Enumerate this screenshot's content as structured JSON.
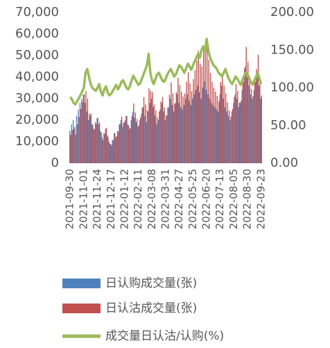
{
  "chart_data": {
    "type": "bar_line",
    "categories": [
      "2021-09-30",
      null,
      null,
      null,
      null,
      null,
      null,
      null,
      "2021-11-01",
      null,
      null,
      null,
      null,
      null,
      null,
      null,
      "2021-11-24",
      null,
      null,
      null,
      null,
      null,
      null,
      null,
      "2021-12-17",
      null,
      null,
      null,
      null,
      null,
      null,
      null,
      "2022-01-12",
      null,
      null,
      null,
      null,
      null,
      null,
      null,
      "2022-02-11",
      null,
      null,
      null,
      null,
      null,
      null,
      null,
      "2022-03-08",
      null,
      null,
      null,
      null,
      null,
      null,
      null,
      "2022-03-31",
      null,
      null,
      null,
      null,
      null,
      null,
      null,
      "2022-04-27",
      null,
      null,
      null,
      null,
      null,
      null,
      null,
      "2022-05-25",
      null,
      null,
      null,
      null,
      null,
      null,
      null,
      "2022-06-20",
      null,
      null,
      null,
      null,
      null,
      null,
      null,
      "2022-07-13",
      null,
      null,
      null,
      null,
      null,
      null,
      null,
      "2022-08-05",
      null,
      null,
      null,
      null,
      null,
      null,
      null,
      "2022-08-30",
      null,
      null,
      null,
      null,
      null,
      null,
      null,
      "2022-09-23"
    ],
    "series": [
      {
        "name": "日认购成交量(张)",
        "color": "#4f81bd",
        "kind": "bar",
        "values": [
          15000,
          18000,
          20000,
          17000,
          22000,
          25000,
          28000,
          30000,
          32000,
          28000,
          24000,
          20000,
          22000,
          18000,
          16000,
          19000,
          21000,
          18000,
          15000,
          12000,
          14000,
          16000,
          13000,
          10000,
          9000,
          11000,
          14000,
          12000,
          15000,
          18000,
          20000,
          17000,
          19000,
          22000,
          18000,
          16000,
          20000,
          24000,
          21000,
          19000,
          17000,
          20000,
          23000,
          26000,
          22000,
          19000,
          24000,
          28000,
          30000,
          26000,
          22000,
          18000,
          20000,
          25000,
          28000,
          24000,
          20000,
          22000,
          26000,
          30000,
          27000,
          24000,
          28000,
          32000,
          28000,
          26000,
          25000,
          27000,
          30000,
          32000,
          29000,
          27000,
          30000,
          32000,
          34000,
          36000,
          33000,
          30000,
          35000,
          38000,
          34000,
          32000,
          30000,
          28000,
          27000,
          26000,
          25000,
          24000,
          32000,
          36000,
          30000,
          26000,
          24000,
          22000,
          20000,
          24000,
          28000,
          32000,
          30000,
          26000,
          28000,
          34000,
          38000,
          45000,
          40000,
          36000,
          32000,
          30000,
          34000,
          38000,
          42000,
          36000,
          30000
        ]
      },
      {
        "name": "日认沽成交量(张)",
        "color": "#c0504d",
        "kind": "bar",
        "values": [
          13200,
          15300,
          16000,
          13260,
          18040,
          21500,
          25200,
          28500,
          32000,
          33600,
          30000,
          23000,
          23100,
          18000,
          15680,
          18240,
          21000,
          18900,
          14250,
          10800,
          13720,
          16320,
          12220,
          9000,
          8280,
          10560,
          14000,
          12480,
          14700,
          18360,
          21600,
          18700,
          19950,
          22000,
          17640,
          16320,
          22000,
          27840,
          23520,
          20520,
          17680,
          21200,
          25760,
          30680,
          27280,
          24700,
          34800,
          33600,
          33000,
          27300,
          24640,
          21240,
          24000,
          28750,
          30800,
          25920,
          22400,
          25960,
          31720,
          37500,
          32400,
          27600,
          33040,
          39680,
          36400,
          33280,
          31000,
          32400,
          37800,
          42240,
          37120,
          33480,
          39000,
          43200,
          47600,
          52200,
          46200,
          45000,
          54250,
          56240,
          56100,
          48000,
          42000,
          37800,
          35100,
          33280,
          31250,
          28800,
          37760,
          41400,
          36000,
          32500,
          28320,
          24640,
          21600,
          25200,
          30800,
          36800,
          33600,
          28080,
          29120,
          37400,
          44080,
          54000,
          47200,
          40320,
          34560,
          31200,
          37400,
          43700,
          50400,
          40320,
          31500
        ]
      },
      {
        "name": "成交量日认沽/认购(%)",
        "color": "#9bbb59",
        "kind": "line",
        "axis": "y2",
        "values": [
          88,
          85,
          80,
          78,
          82,
          86,
          90,
          95,
          100,
          120,
          125,
          115,
          105,
          100,
          98,
          96,
          100,
          105,
          95,
          90,
          98,
          102,
          94,
          90,
          92,
          96,
          100,
          104,
          98,
          102,
          108,
          110,
          105,
          100,
          98,
          102,
          110,
          116,
          112,
          108,
          104,
          106,
          112,
          118,
          124,
          130,
          145,
          120,
          110,
          105,
          112,
          118,
          120,
          115,
          110,
          108,
          112,
          118,
          122,
          125,
          120,
          115,
          118,
          124,
          130,
          128,
          124,
          120,
          126,
          132,
          128,
          124,
          130,
          135,
          140,
          145,
          140,
          150,
          155,
          148,
          165,
          150,
          140,
          135,
          130,
          128,
          125,
          120,
          118,
          115,
          120,
          125,
          118,
          112,
          108,
          105,
          110,
          115,
          112,
          108,
          104,
          110,
          116,
          120,
          118,
          112,
          108,
          104,
          110,
          115,
          120,
          112,
          105
        ]
      }
    ],
    "ylim": [
      0,
      70000
    ],
    "yticks": [
      0,
      {
        "value": 10000,
        "label": "10,000"
      },
      {
        "value": 20000,
        "label": "20,000"
      },
      {
        "value": 30000,
        "label": "30,000"
      },
      {
        "value": 40000,
        "label": "40,000"
      },
      {
        "value": 50000,
        "label": "50,000"
      },
      {
        "value": 60000,
        "label": "60,000"
      },
      {
        "value": 70000,
        "label": "70,000"
      }
    ],
    "y2lim": [
      0,
      200
    ],
    "y2ticks": [
      {
        "value": 0,
        "label": "0.00"
      },
      {
        "value": 50,
        "label": "50.00"
      },
      {
        "value": 100,
        "label": "100.00"
      },
      {
        "value": 150,
        "label": "150.00"
      },
      {
        "value": 200,
        "label": "200.00"
      }
    ],
    "legend": "bottom"
  }
}
